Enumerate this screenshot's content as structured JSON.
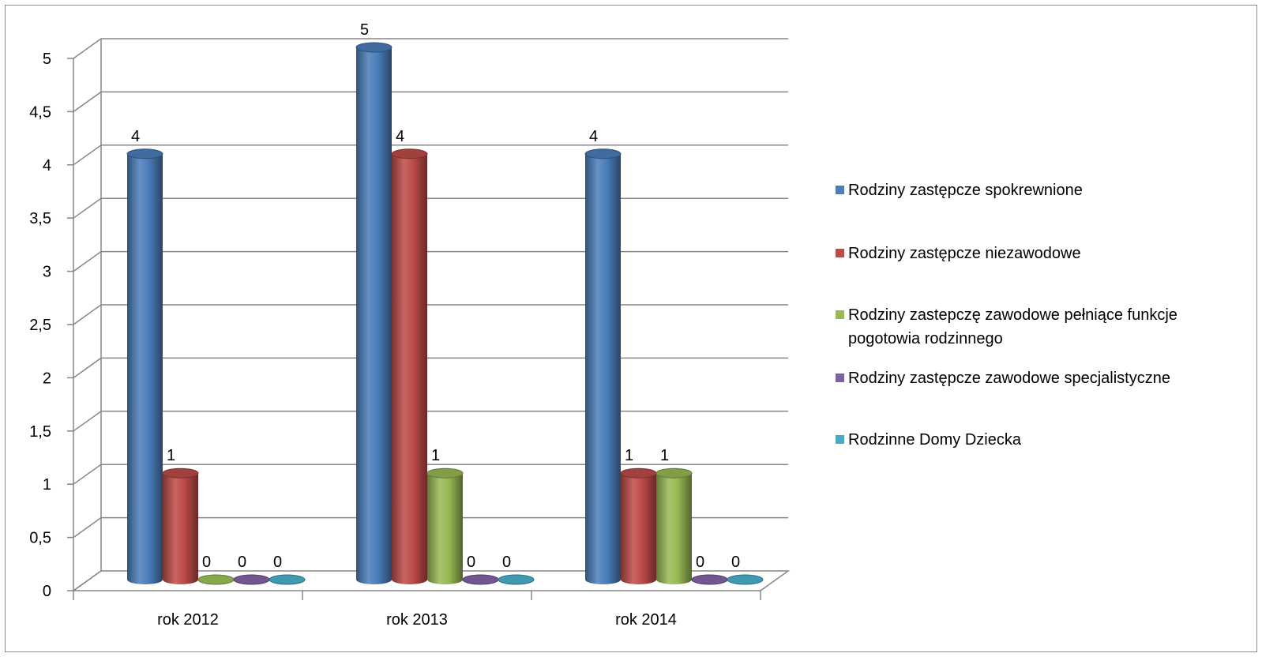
{
  "chart_data": {
    "type": "bar",
    "title": "",
    "xlabel": "",
    "ylabel": "",
    "ylim": [
      0,
      5
    ],
    "ytick_step": 0.5,
    "ytick_labels": [
      "0",
      "0,5",
      "1",
      "1,5",
      "2",
      "2,5",
      "3",
      "3,5",
      "4",
      "4,5",
      "5"
    ],
    "grid": true,
    "three_d": true,
    "bar_shape": "cylinder",
    "legend_position": "right",
    "data_labels": true,
    "categories": [
      "rok 2012",
      "rok 2013",
      "rok 2014"
    ],
    "series": [
      {
        "name": "Rodziny zastępcze spokrewnione",
        "values": [
          4,
          5,
          4
        ],
        "color": "#4a7ebb"
      },
      {
        "name": "Rodziny zastępcze niezawodowe",
        "values": [
          1,
          4,
          1
        ],
        "color": "#be4b48"
      },
      {
        "name": "Rodziny zastepczę zawodowe pełniące funkcje pogotowia rodzinnego",
        "values": [
          0,
          1,
          1
        ],
        "color": "#98b954"
      },
      {
        "name": "Rodziny zastępcze zawodowe specjalistyczne",
        "values": [
          0,
          0,
          0
        ],
        "color": "#7d60a0"
      },
      {
        "name": "Rodzinne Domy Dziecka",
        "values": [
          0,
          0,
          0
        ],
        "color": "#46aac5"
      }
    ]
  }
}
